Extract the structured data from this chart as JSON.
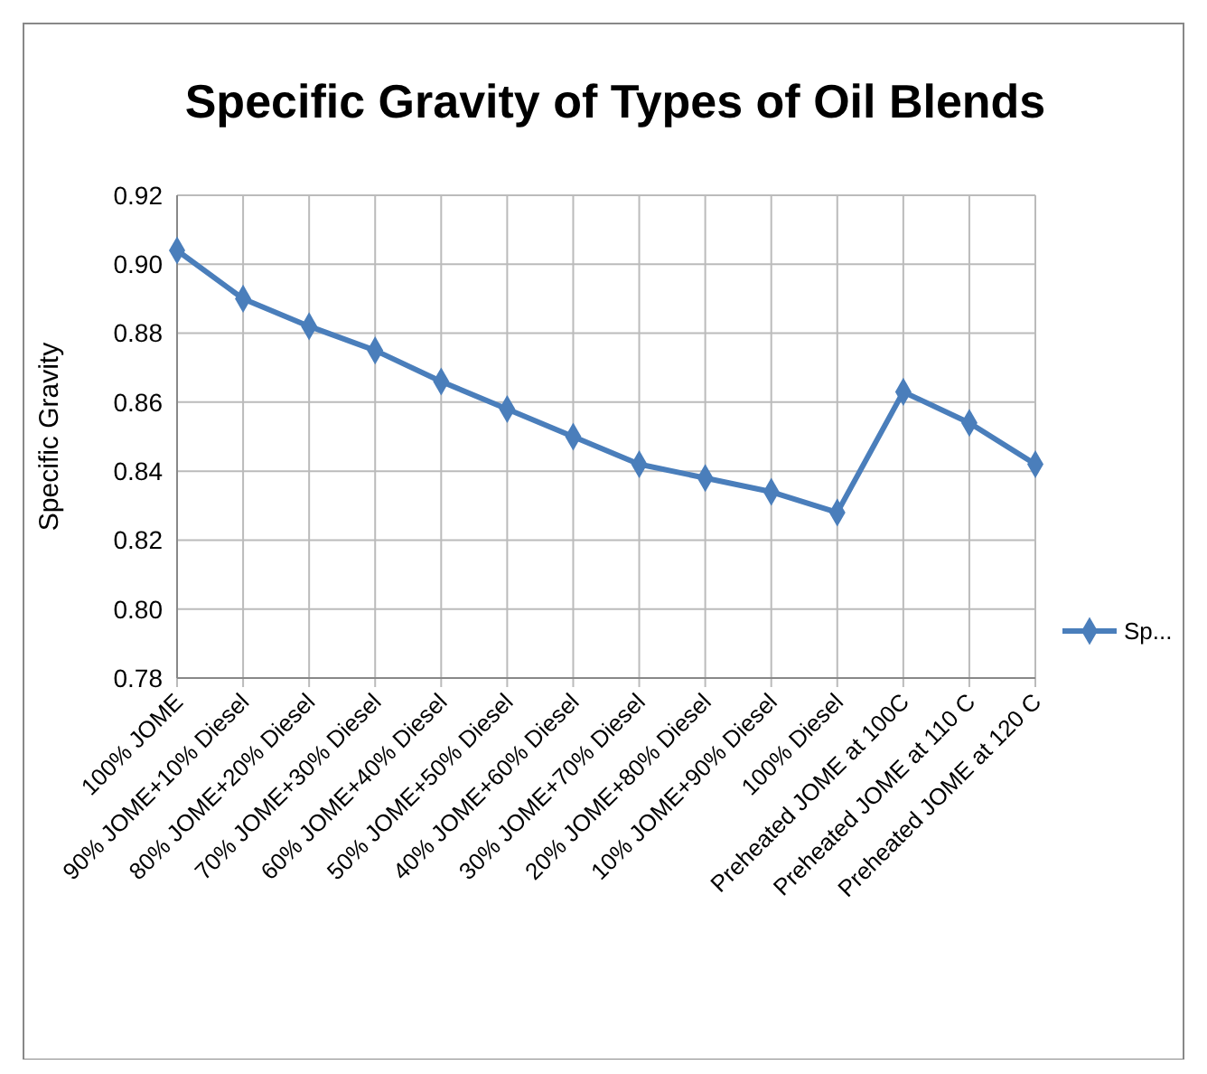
{
  "chart_data": {
    "type": "line",
    "title": "Specific Gravity of Types of Oil Blends",
    "ylabel": "Specific Gravity",
    "categories": [
      "100% JOME",
      "90% JOME+10% Diesel",
      "80% JOME+20% Diesel",
      "70% JOME+30% Diesel",
      "60% JOME+40% Diesel",
      "50% JOME+50% Diesel",
      "40% JOME+60% Diesel",
      "30% JOME+70% Diesel",
      "20% JOME+80% Diesel",
      "10% JOME+90% Diesel",
      "100% Diesel",
      "Preheated JOME at 100C",
      "Preheated JOME at 110 C",
      "Preheated JOME at 120 C"
    ],
    "series": [
      {
        "name": "Sp...",
        "color": "#4a7ebb",
        "values": [
          0.904,
          0.89,
          0.882,
          0.875,
          0.866,
          0.858,
          0.85,
          0.842,
          0.838,
          0.834,
          0.828,
          0.863,
          0.854,
          0.842
        ]
      }
    ],
    "ylim": [
      0.78,
      0.92
    ],
    "yticks": [
      {
        "value": 0.78,
        "label": "0.78"
      },
      {
        "value": 0.8,
        "label": "0.80"
      },
      {
        "value": 0.82,
        "label": "0.82"
      },
      {
        "value": 0.84,
        "label": "0.84"
      },
      {
        "value": 0.86,
        "label": "0.86"
      },
      {
        "value": 0.88,
        "label": "0.88"
      },
      {
        "value": 0.9,
        "label": "0.90"
      },
      {
        "value": 0.92,
        "label": "0.92"
      }
    ],
    "grid": true,
    "legend": "right",
    "marker": "diamond",
    "line_style": "solid"
  }
}
